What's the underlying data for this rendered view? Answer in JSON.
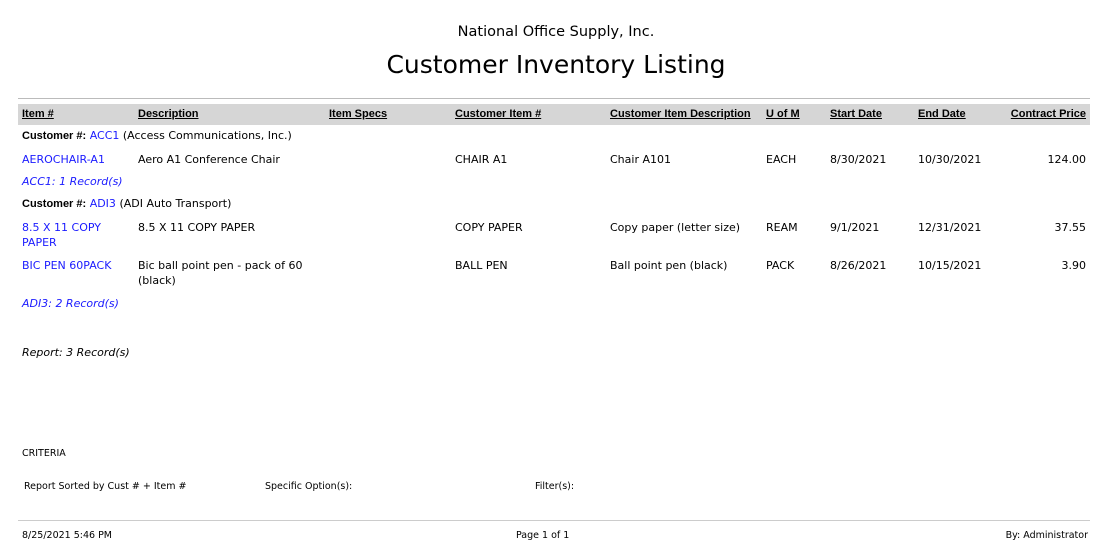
{
  "header": {
    "company": "National Office Supply, Inc.",
    "title": "Customer Inventory Listing"
  },
  "columns": [
    "Item #",
    "Description",
    "Item Specs",
    "Customer Item #",
    "Customer Item Description",
    "U of M",
    "Start Date",
    "End Date",
    "Contract Price"
  ],
  "customer_label": "Customer #:",
  "groups": [
    {
      "code": "ACC1",
      "name": "(Access Communications, Inc.)",
      "total": "ACC1: 1 Record(s)",
      "rows": [
        {
          "item": [
            "AEROCHAIR-A1"
          ],
          "desc": [
            "Aero A1 Conference Chair"
          ],
          "specs": "",
          "cust_item": "CHAIR A1",
          "cust_desc": "Chair A101",
          "uom": "EACH",
          "start": "8/30/2021",
          "end": "10/30/2021",
          "price": "124.00"
        }
      ]
    },
    {
      "code": "ADI3",
      "name": "(ADI Auto Transport)",
      "total": "ADI3: 2 Record(s)",
      "rows": [
        {
          "item": [
            "8.5 X 11 COPY",
            "PAPER"
          ],
          "desc": [
            "8.5 X 11 COPY PAPER"
          ],
          "specs": "",
          "cust_item": "COPY PAPER",
          "cust_desc": "Copy paper (letter size)",
          "uom": "REAM",
          "start": "9/1/2021",
          "end": "12/31/2021",
          "price": "37.55"
        },
        {
          "item": [
            "BIC PEN 60PACK"
          ],
          "desc": [
            "Bic ball point pen - pack of 60",
            "(black)"
          ],
          "specs": "",
          "cust_item": "BALL PEN",
          "cust_desc": "Ball point pen (black)",
          "uom": "PACK",
          "start": "8/26/2021",
          "end": "10/15/2021",
          "price": "3.90"
        }
      ]
    }
  ],
  "report_total": "Report: 3 Record(s)",
  "criteria": {
    "title": "CRITERIA",
    "sorted": "Report Sorted by Cust # + Item #",
    "options": "Specific Option(s):",
    "filters": "Filter(s):"
  },
  "footer": {
    "datetime": "8/25/2021 5:46 PM",
    "page": "Page 1 of 1",
    "by": "By: Administrator"
  },
  "colors": {
    "link": "#1a1aff",
    "header_bar": "#d6d6d6"
  }
}
